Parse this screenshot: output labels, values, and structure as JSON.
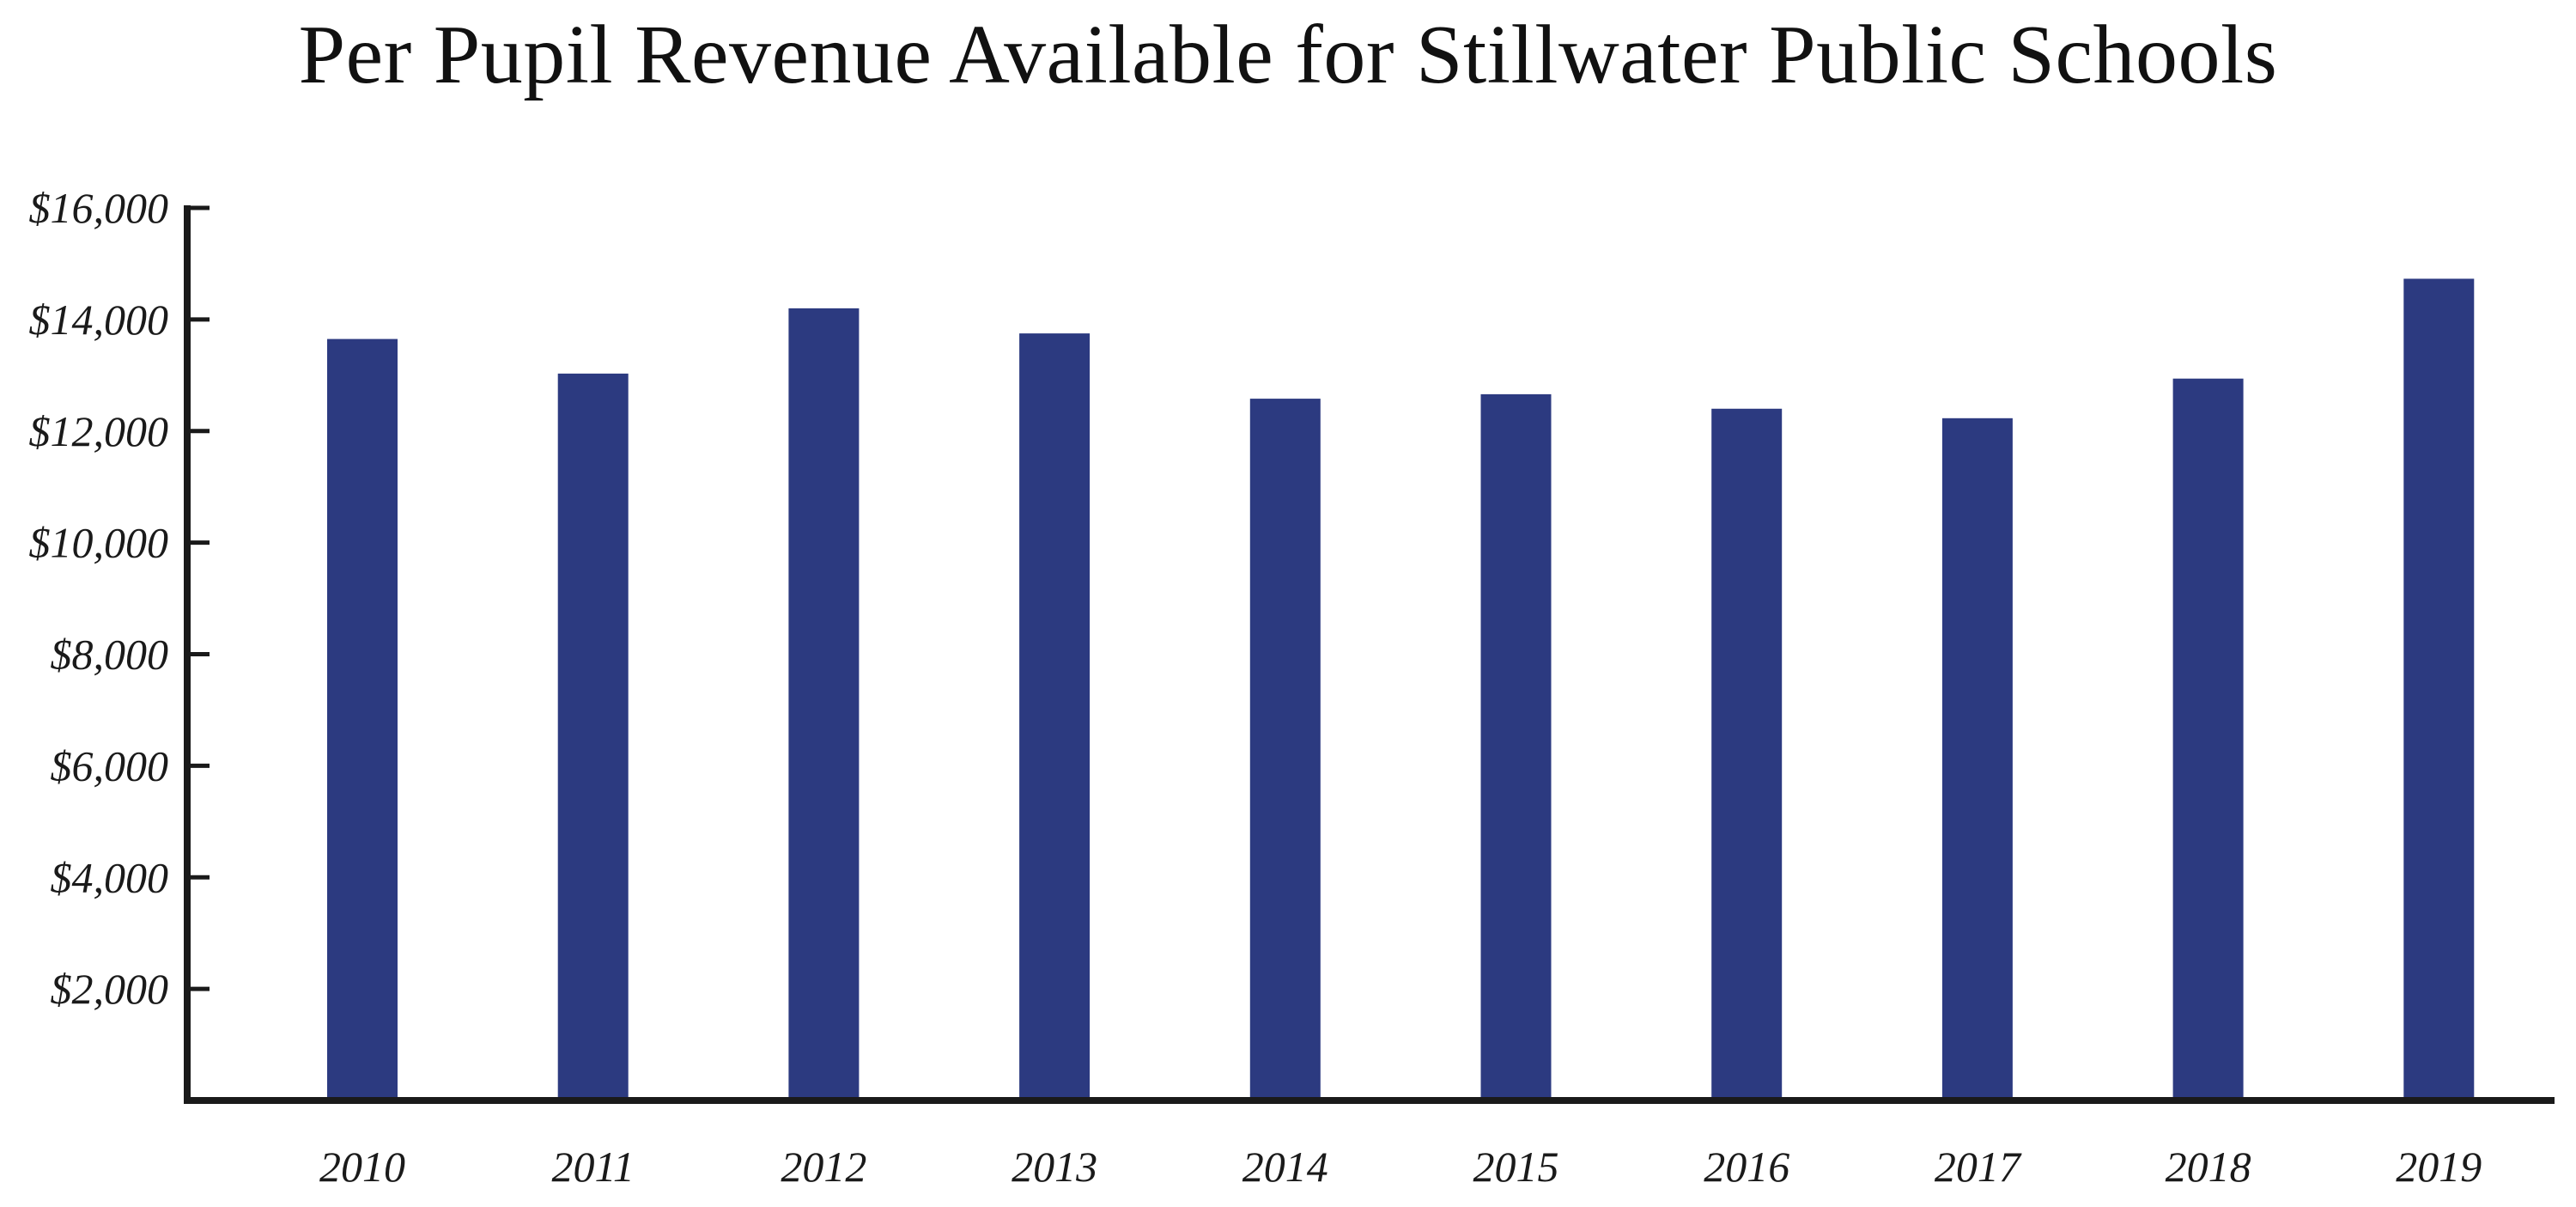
{
  "chart_data": {
    "type": "bar",
    "title": "Per Pupil Revenue Available for Stillwater Public Schools",
    "xlabel": "",
    "ylabel": "",
    "categories": [
      "2010",
      "2011",
      "2012",
      "2013",
      "2014",
      "2015",
      "2016",
      "2017",
      "2018",
      "2019"
    ],
    "values": [
      13650,
      13030,
      14200,
      13750,
      12580,
      12660,
      12400,
      12230,
      12940,
      14730
    ],
    "ylim": [
      0,
      16000
    ],
    "yticks": [
      2000,
      4000,
      6000,
      8000,
      10000,
      12000,
      14000,
      16000
    ],
    "ytick_labels": [
      "$2,000",
      "$4,000",
      "$6,000",
      "$8,000",
      "$10,000",
      "$12,000",
      "$14,000",
      "$16,000"
    ],
    "grid": false,
    "legend": "none",
    "bar_color": "#2C3A80",
    "axis_color": "#1a1a1a"
  }
}
